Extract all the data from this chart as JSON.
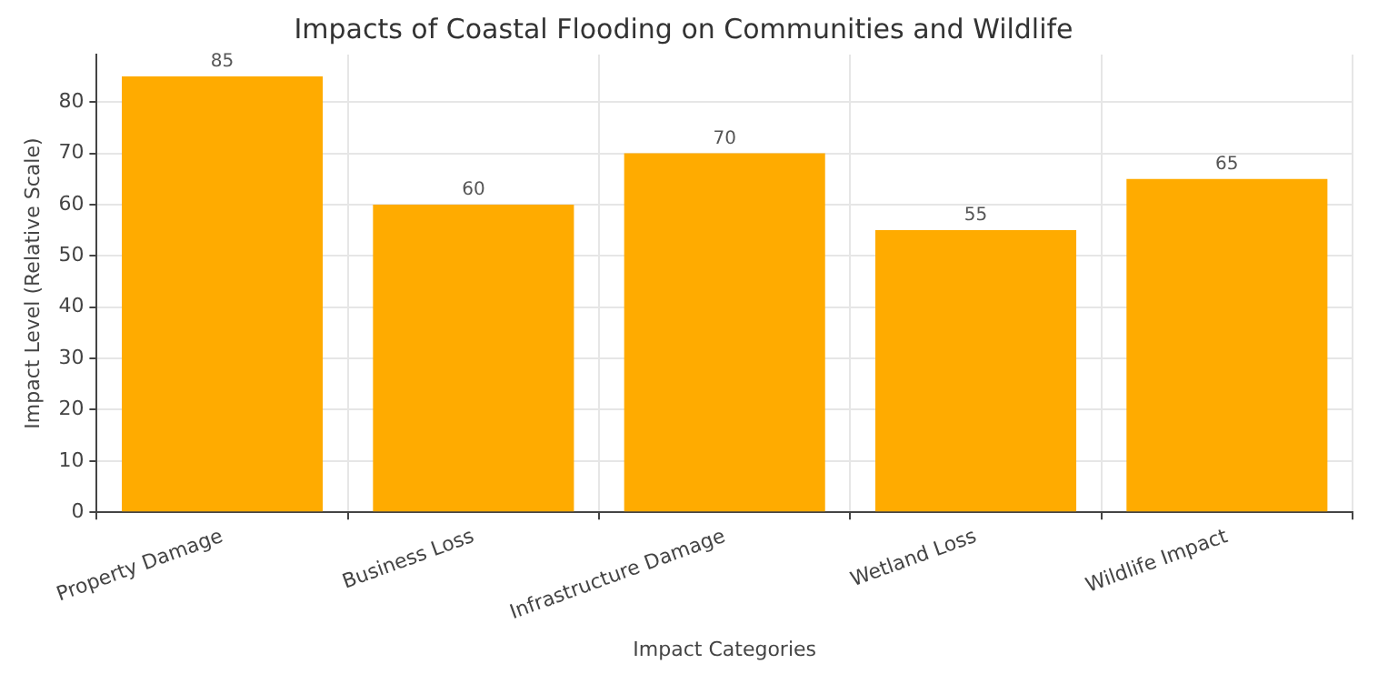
{
  "chart_data": {
    "type": "bar",
    "title": "Impacts of Coastal Flooding on Communities and Wildlife",
    "xlabel": "Impact Categories",
    "ylabel": "Impact Level (Relative Scale)",
    "categories": [
      "Property Damage",
      "Business Loss",
      "Infrastructure Damage",
      "Wetland Loss",
      "Wildlife Impact"
    ],
    "values": [
      85,
      60,
      70,
      55,
      65
    ],
    "color": "#ffab00",
    "ylim": [
      0,
      89.25
    ],
    "yticks": [
      0,
      10,
      20,
      30,
      40,
      50,
      60,
      70,
      80
    ],
    "grid": true,
    "data_labels": true
  }
}
